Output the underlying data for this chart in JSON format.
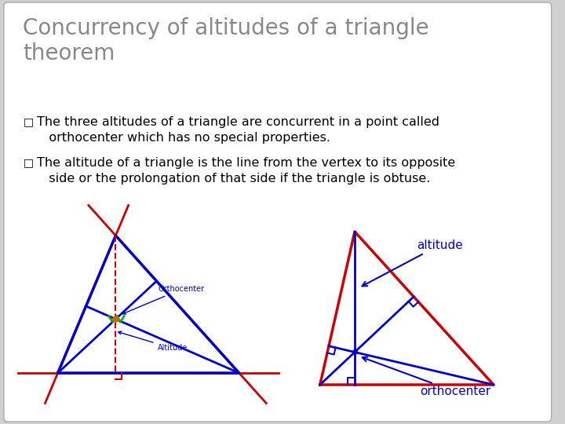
{
  "title": "Concurrency of altitudes of a triangle\ntheorem",
  "title_color": "#888888",
  "title_fontsize": 20,
  "bg_color": "#d0d0d0",
  "slide_bg": "#ffffff",
  "bullet1": "The three altitudes of a triangle are concurrent in a point called\n   orthocenter which has no special properties.",
  "bullet2": "The altitude of a triangle is the line from the vertex to its opposite\n   side or the prolongation of that side if the triangle is obtuse.",
  "bullet_fontsize": 11.5,
  "bullet_color": "#000000",
  "blue": "#0000cc",
  "red": "#cc0000",
  "green": "#00aa00",
  "orange": "#cc6600"
}
